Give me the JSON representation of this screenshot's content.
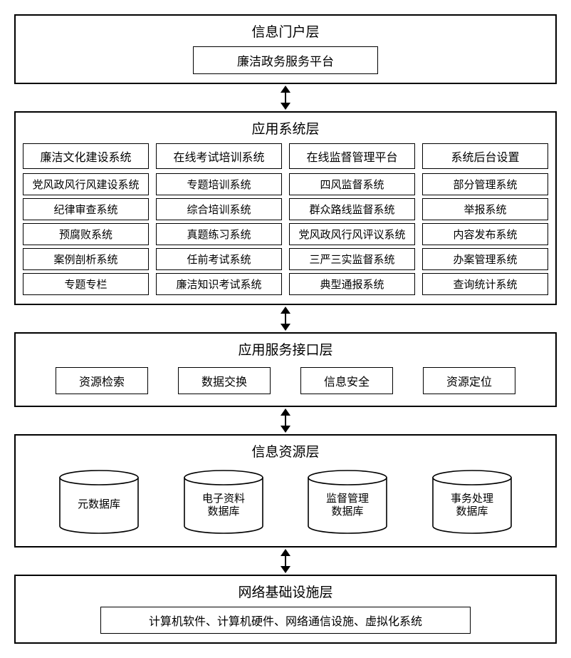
{
  "layout": {
    "bg": "#ffffff",
    "fg": "#000000",
    "border_color": "#000000",
    "connector_len": 34,
    "connector_head": 10
  },
  "layers": {
    "portal": {
      "title": "信息门户层",
      "platform": "廉洁政务服务平台"
    },
    "app": {
      "title": "应用系统层",
      "columns": [
        {
          "header": "廉洁文化建设系统",
          "items": [
            "党风政风行风建设系统",
            "纪律审查系统",
            "预腐败系统",
            "案例剖析系统",
            "专题专栏"
          ]
        },
        {
          "header": "在线考试培训系统",
          "items": [
            "专题培训系统",
            "综合培训系统",
            "真题练习系统",
            "任前考试系统",
            "廉洁知识考试系统"
          ]
        },
        {
          "header": "在线监督管理平台",
          "items": [
            "四风监督系统",
            "群众路线监督系统",
            "党风政风行风评议系统",
            "三严三实监督系统",
            "典型通报系统"
          ]
        },
        {
          "header": "系统后台设置",
          "items": [
            "部分管理系统",
            "举报系统",
            "内容发布系统",
            "办案管理系统",
            "查询统计系统"
          ]
        }
      ]
    },
    "svc": {
      "title": "应用服务接口层",
      "items": [
        "资源检索",
        "数据交换",
        "信息安全",
        "资源定位"
      ]
    },
    "res": {
      "title": "信息资源层",
      "dbs": [
        "元数据库",
        "电子资料数据库",
        "监督管理数据库",
        "事务处理数据库"
      ]
    },
    "infra": {
      "title": "网络基础设施层",
      "content": "计算机软件、计算机硬件、网络通信设施、虚拟化系统"
    }
  },
  "db_style": {
    "width": 110,
    "height": 80,
    "ellipse_ry": 10,
    "stroke": "#000000",
    "fill": "#ffffff",
    "fontsize": 15
  }
}
